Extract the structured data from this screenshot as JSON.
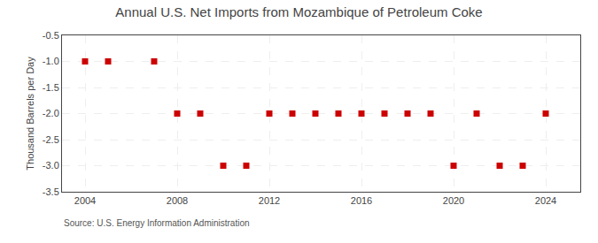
{
  "chart_data": {
    "type": "scatter",
    "title": "Annual U.S. Net Imports from Mozambique of Petroleum Coke",
    "y_label": "Thousand Barrels per Day",
    "annotations": [
      "Source: U.S. Energy Information Administration"
    ],
    "x": [
      2004,
      2005,
      2007,
      2008,
      2009,
      2010,
      2011,
      2012,
      2013,
      2014,
      2015,
      2016,
      2017,
      2018,
      2019,
      2020,
      2021,
      2022,
      2023,
      2024
    ],
    "values": [
      -1,
      -1,
      -1,
      -2,
      -2,
      -3,
      -3,
      -2,
      -2,
      -2,
      -2,
      -2,
      -2,
      -2,
      -2,
      -3,
      -2,
      -3,
      -3,
      -2
    ],
    "color": "#cc0000",
    "marker": "square",
    "xlim": [
      2003.0,
      2025.5
    ],
    "xticks": [
      2004,
      2008,
      2012,
      2016,
      2020,
      2024
    ],
    "ylim": [
      -3.5,
      -0.5
    ],
    "yticks": [
      -0.5,
      {
        "value": -1.0,
        "label": "-1.0"
      },
      -1.5,
      {
        "value": -2.0,
        "label": "-2.0"
      },
      -2.5,
      {
        "value": -3.0,
        "label": "-3.0"
      },
      -3.5
    ],
    "grid": true
  }
}
